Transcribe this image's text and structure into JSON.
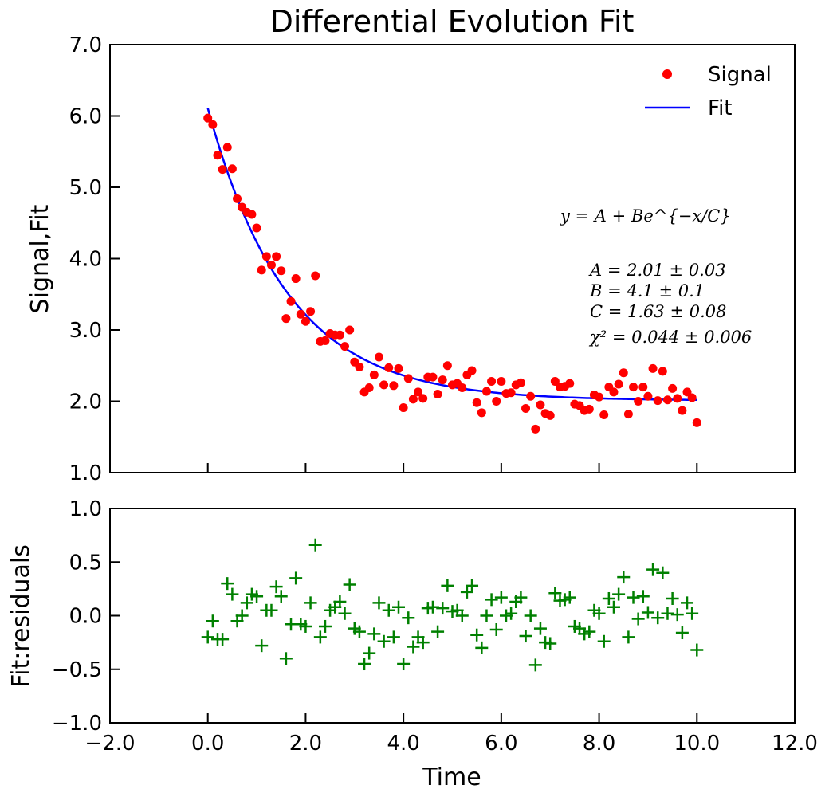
{
  "chart_data": {
    "type": "scatter",
    "title": "Differential Evolution  Fit",
    "xlabel": "Time",
    "xlim": [
      -2.0,
      12.0
    ],
    "x_ticks": [
      "−2.0",
      "0.0",
      "2.0",
      "4.0",
      "6.0",
      "8.0",
      "10.0",
      "12.0"
    ],
    "grid": false,
    "legend_position": "top-right",
    "colors": {
      "signal": "#ff0000",
      "fit": "#0000ff",
      "residuals": "#008000"
    },
    "panels": [
      {
        "name": "main",
        "ylabel": "Signal,Fit",
        "ylim": [
          1.0,
          7.0
        ],
        "y_ticks": [
          "1.0",
          "2.0",
          "3.0",
          "4.0",
          "5.0",
          "6.0",
          "7.0"
        ],
        "legend": [
          "Signal",
          "Fit"
        ],
        "annotation_formula": "y = A + Be^{−x/C}",
        "annotation_params": [
          "A = 2.01 ± 0.03",
          "B = 4.1 ± 0.1",
          "C = 1.63 ± 0.08",
          "χ² = 0.044 ± 0.006"
        ]
      },
      {
        "name": "residuals",
        "ylabel": "Fit:residuals",
        "ylim": [
          -1.0,
          1.0
        ],
        "y_ticks": [
          "−1.0",
          "−0.5",
          "0.0",
          "0.5",
          "1.0"
        ]
      }
    ],
    "fit_params": {
      "A": 2.01,
      "B": 4.1,
      "C": 1.63
    },
    "x": [
      0.0,
      0.1,
      0.2,
      0.3,
      0.4,
      0.5,
      0.6,
      0.7,
      0.8,
      0.9,
      1.0,
      1.1,
      1.2,
      1.3,
      1.4,
      1.5,
      1.6,
      1.7,
      1.8,
      1.9,
      2.0,
      2.1,
      2.2,
      2.3,
      2.4,
      2.5,
      2.6,
      2.7,
      2.8,
      2.9,
      3.0,
      3.1,
      3.2,
      3.3,
      3.4,
      3.5,
      3.6,
      3.7,
      3.8,
      3.9,
      4.0,
      4.1,
      4.2,
      4.3,
      4.4,
      4.5,
      4.6,
      4.7,
      4.8,
      4.9,
      5.0,
      5.1,
      5.2,
      5.3,
      5.4,
      5.5,
      5.6,
      5.7,
      5.8,
      5.9,
      6.0,
      6.1,
      6.2,
      6.3,
      6.4,
      6.5,
      6.6,
      6.7,
      6.8,
      6.9,
      7.0,
      7.1,
      7.2,
      7.3,
      7.4,
      7.5,
      7.6,
      7.7,
      7.8,
      7.9,
      8.0,
      8.1,
      8.2,
      8.3,
      8.4,
      8.5,
      8.6,
      8.7,
      8.8,
      8.9,
      9.0,
      9.1,
      9.2,
      9.3,
      9.4,
      9.5,
      9.6,
      9.7,
      9.8,
      9.9,
      10.0
    ],
    "signal": [
      5.97,
      5.88,
      5.45,
      5.25,
      5.56,
      5.26,
      4.84,
      4.72,
      4.65,
      4.62,
      4.43,
      3.84,
      4.03,
      3.91,
      4.03,
      3.83,
      3.16,
      3.4,
      3.72,
      3.22,
      3.12,
      3.26,
      3.76,
      2.84,
      2.85,
      2.95,
      2.93,
      2.93,
      2.77,
      3.0,
      2.55,
      2.48,
      2.13,
      2.19,
      2.37,
      2.62,
      2.23,
      2.47,
      2.22,
      2.46,
      1.91,
      2.32,
      2.03,
      2.13,
      2.04,
      2.34,
      2.34,
      2.1,
      2.3,
      2.5,
      2.23,
      2.25,
      2.19,
      2.37,
      2.43,
      1.98,
      1.84,
      2.14,
      2.28,
      2.0,
      2.28,
      2.11,
      2.12,
      2.23,
      2.26,
      1.9,
      2.07,
      1.61,
      1.95,
      1.83,
      1.8,
      2.28,
      2.2,
      2.21,
      2.25,
      1.96,
      1.94,
      1.87,
      1.89,
      2.09,
      2.06,
      1.81,
      2.2,
      2.13,
      2.24,
      2.4,
      1.82,
      2.2,
      2.0,
      2.2,
      2.07,
      2.46,
      2.01,
      2.42,
      2.02,
      2.18,
      2.04,
      1.87,
      2.13,
      2.05,
      1.7
    ],
    "residuals": [
      -0.2,
      -0.05,
      -0.22,
      -0.22,
      0.3,
      0.2,
      -0.05,
      0.0,
      0.12,
      0.2,
      0.18,
      -0.28,
      0.05,
      0.05,
      0.27,
      0.18,
      -0.4,
      -0.08,
      0.35,
      -0.08,
      -0.1,
      0.12,
      0.66,
      -0.2,
      -0.1,
      0.05,
      0.08,
      0.13,
      0.02,
      0.29,
      -0.12,
      -0.15,
      -0.45,
      -0.35,
      -0.17,
      0.12,
      -0.24,
      0.05,
      -0.2,
      0.08,
      -0.45,
      -0.02,
      -0.29,
      -0.2,
      -0.25,
      0.07,
      0.08,
      -0.15,
      0.07,
      0.28,
      0.04,
      0.05,
      0.0,
      0.22,
      0.28,
      -0.18,
      -0.3,
      0.0,
      0.15,
      -0.13,
      0.17,
      0.0,
      0.02,
      0.13,
      0.17,
      -0.19,
      -0.0,
      -0.46,
      -0.12,
      -0.25,
      -0.26,
      0.21,
      0.14,
      0.15,
      0.17,
      -0.1,
      -0.12,
      -0.17,
      -0.15,
      0.05,
      0.02,
      -0.24,
      0.16,
      0.08,
      0.2,
      0.36,
      -0.2,
      0.17,
      -0.03,
      0.18,
      0.03,
      0.43,
      -0.02,
      0.4,
      0.02,
      0.16,
      0.01,
      -0.16,
      0.12,
      0.02,
      -0.32
    ]
  }
}
